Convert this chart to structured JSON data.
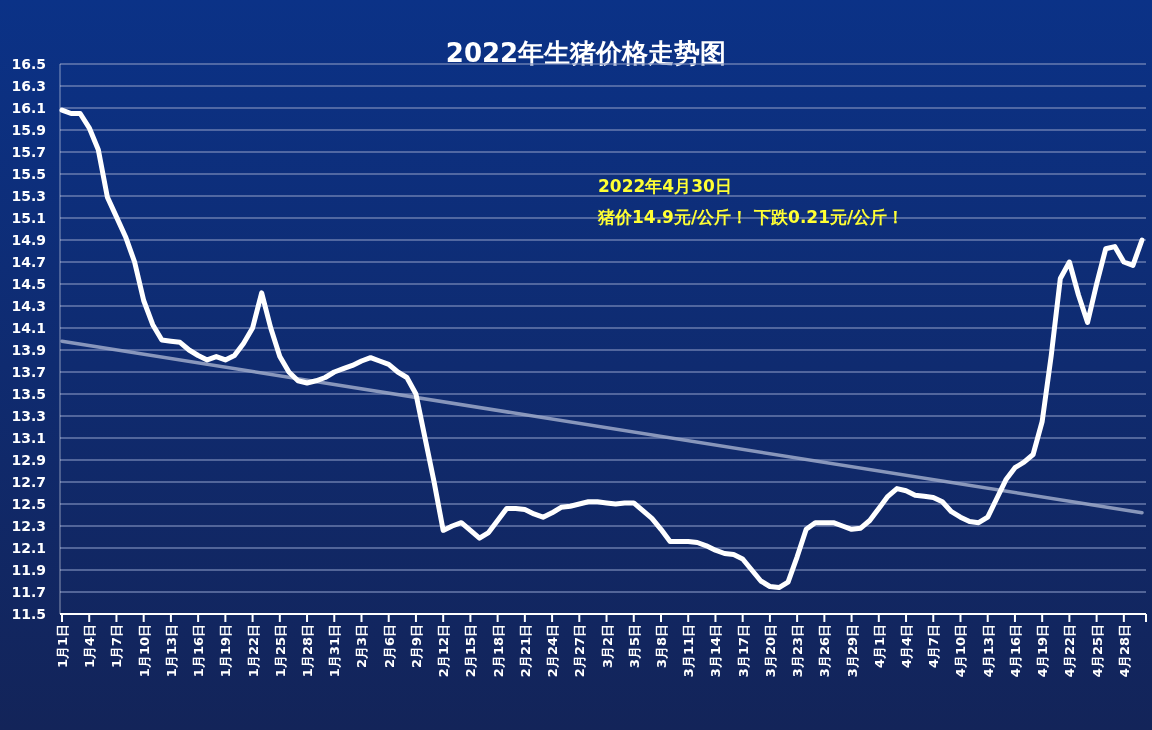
{
  "chart_data": {
    "type": "line",
    "title": "2022年生猪价格走势图",
    "categories": [
      "1月1日",
      null,
      null,
      "1月4日",
      null,
      null,
      "1月7日",
      null,
      null,
      "1月10日",
      null,
      null,
      "1月13日",
      null,
      null,
      "1月16日",
      null,
      null,
      "1月19日",
      null,
      null,
      "1月22日",
      null,
      null,
      "1月25日",
      null,
      null,
      "1月28日",
      null,
      null,
      "1月31日",
      null,
      null,
      "2月3日",
      null,
      null,
      "2月6日",
      null,
      null,
      "2月9日",
      null,
      null,
      "2月12日",
      null,
      null,
      "2月15日",
      null,
      null,
      "2月18日",
      null,
      null,
      "2月21日",
      null,
      null,
      "2月24日",
      null,
      null,
      "2月27日",
      null,
      null,
      "3月2日",
      null,
      null,
      "3月5日",
      null,
      null,
      "3月8日",
      null,
      null,
      "3月11日",
      null,
      null,
      "3月14日",
      null,
      null,
      "3月17日",
      null,
      null,
      "3月20日",
      null,
      null,
      "3月23日",
      null,
      null,
      "3月26日",
      null,
      null,
      "3月29日",
      null,
      null,
      "4月1日",
      null,
      null,
      "4月4日",
      null,
      null,
      "4月7日",
      null,
      null,
      "4月10日",
      null,
      null,
      "4月13日",
      null,
      null,
      "4月16日",
      null,
      null,
      "4月19日",
      null,
      null,
      "4月22日",
      null,
      null,
      "4月25日",
      null,
      null,
      "4月28日",
      null,
      null
    ],
    "series": [
      {
        "color": "#ffffff",
        "values": [
          16.08,
          16.05,
          16.05,
          15.92,
          15.72,
          15.29,
          15.11,
          14.93,
          14.7,
          14.35,
          14.13,
          13.99,
          13.98,
          13.97,
          13.9,
          13.85,
          13.81,
          13.84,
          13.81,
          13.85,
          13.96,
          14.1,
          14.42,
          14.1,
          13.84,
          13.7,
          13.62,
          13.6,
          13.62,
          13.65,
          13.7,
          13.73,
          13.76,
          13.8,
          13.83,
          13.8,
          13.77,
          13.7,
          13.65,
          13.5,
          13.1,
          12.7,
          12.26,
          12.3,
          12.33,
          12.26,
          12.19,
          12.24,
          12.35,
          12.46,
          12.46,
          12.45,
          12.41,
          12.38,
          12.42,
          12.47,
          12.48,
          12.5,
          12.52,
          12.52,
          12.51,
          12.5,
          12.51,
          12.51,
          12.44,
          12.37,
          12.27,
          12.16,
          12.16,
          12.16,
          12.15,
          12.12,
          12.08,
          12.05,
          12.04,
          12.0,
          11.9,
          11.8,
          11.75,
          11.74,
          11.79,
          12.02,
          12.27,
          12.33,
          12.33,
          12.33,
          12.3,
          12.27,
          12.28,
          12.35,
          12.46,
          12.57,
          12.64,
          12.62,
          12.58,
          12.57,
          12.56,
          12.52,
          12.43,
          12.38,
          12.34,
          12.33,
          12.38,
          12.55,
          12.72,
          12.83,
          12.88,
          12.95,
          13.25,
          13.85,
          14.55,
          14.7,
          14.4,
          14.15,
          14.5,
          14.82,
          14.84,
          14.7,
          14.67,
          14.9
        ]
      },
      {
        "type": "line",
        "color": "#9ea9c9",
        "values": [
          13.98,
          null,
          null,
          null,
          null,
          null,
          null,
          null,
          null,
          null,
          null,
          null,
          null,
          null,
          null,
          null,
          null,
          null,
          null,
          null,
          null,
          null,
          null,
          null,
          null,
          null,
          null,
          null,
          null,
          null,
          null,
          null,
          null,
          null,
          null,
          null,
          null,
          null,
          null,
          null,
          null,
          null,
          null,
          null,
          null,
          null,
          null,
          null,
          null,
          null,
          null,
          null,
          null,
          null,
          null,
          null,
          null,
          null,
          null,
          null,
          null,
          null,
          null,
          null,
          null,
          null,
          null,
          null,
          null,
          null,
          null,
          null,
          null,
          null,
          null,
          null,
          null,
          null,
          null,
          null,
          null,
          null,
          null,
          null,
          null,
          null,
          null,
          null,
          null,
          null,
          null,
          null,
          null,
          null,
          null,
          null,
          null,
          null,
          null,
          null,
          null,
          null,
          null,
          null,
          null,
          null,
          null,
          null,
          null,
          null,
          null,
          null,
          null,
          null,
          null,
          null,
          null,
          null,
          null,
          12.42
        ]
      }
    ],
    "ylim": [
      11.5,
      16.5
    ],
    "yticks": [
      11.5,
      11.7,
      11.9,
      12.1,
      12.3,
      12.5,
      12.7,
      12.9,
      13.1,
      13.3,
      13.5,
      13.7,
      13.9,
      14.1,
      14.3,
      14.5,
      14.7,
      14.9,
      15.1,
      15.3,
      15.5,
      15.7,
      15.9,
      16.1,
      16.3,
      16.5
    ],
    "grid": "y",
    "annotations": [
      "2022年4月30日",
      "猪价14.9元/公斤！ 下跌0.21元/公斤！"
    ]
  }
}
